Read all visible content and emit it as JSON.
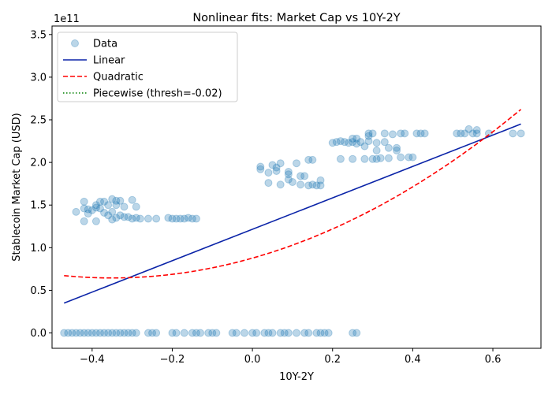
{
  "chart_data": {
    "type": "scatter",
    "title": "Nonlinear fits: Market Cap vs 10Y-2Y",
    "xlabel": "10Y-2Y",
    "ylabel": "Stablecoin Market Cap (USD)",
    "y_multiplier_label": "1e11",
    "xlim": [
      -0.5,
      0.72
    ],
    "ylim": [
      -0.18,
      3.6
    ],
    "x_ticks": [
      -0.4,
      -0.2,
      0.0,
      0.2,
      0.4,
      0.6
    ],
    "x_tick_labels": [
      "−0.4",
      "−0.2",
      "0.0",
      "0.2",
      "0.4",
      "0.6"
    ],
    "y_ticks": [
      0.0,
      0.5,
      1.0,
      1.5,
      2.0,
      2.5,
      3.0,
      3.5
    ],
    "y_tick_labels": [
      "0.0",
      "0.5",
      "1.0",
      "1.5",
      "2.0",
      "2.5",
      "3.0",
      "3.5"
    ],
    "grid": false,
    "legend_position": "top-left",
    "legend": [
      {
        "label": "Data",
        "style": "scatter",
        "color": "#1f77b4"
      },
      {
        "label": "Linear",
        "style": "solid",
        "color": "#0b24a8"
      },
      {
        "label": "Quadratic",
        "style": "dashed",
        "color": "#ff0000"
      },
      {
        "label": "Piecewise (thresh=-0.02)",
        "style": "dotted",
        "color": "#008000"
      }
    ],
    "series": [
      {
        "name": "Data",
        "kind": "scatter",
        "color": "#1f77b4",
        "points": [
          [
            -0.47,
            0.0
          ],
          [
            -0.46,
            0.0
          ],
          [
            -0.45,
            0.0
          ],
          [
            -0.44,
            0.0
          ],
          [
            -0.43,
            0.0
          ],
          [
            -0.42,
            0.0
          ],
          [
            -0.41,
            0.0
          ],
          [
            -0.4,
            0.0
          ],
          [
            -0.39,
            0.0
          ],
          [
            -0.38,
            0.0
          ],
          [
            -0.37,
            0.0
          ],
          [
            -0.36,
            0.0
          ],
          [
            -0.35,
            0.0
          ],
          [
            -0.34,
            0.0
          ],
          [
            -0.33,
            0.0
          ],
          [
            -0.32,
            0.0
          ],
          [
            -0.31,
            0.0
          ],
          [
            -0.3,
            0.0
          ],
          [
            -0.29,
            0.0
          ],
          [
            -0.26,
            0.0
          ],
          [
            -0.25,
            0.0
          ],
          [
            -0.24,
            0.0
          ],
          [
            -0.2,
            0.0
          ],
          [
            -0.19,
            0.0
          ],
          [
            -0.17,
            0.0
          ],
          [
            -0.15,
            0.0
          ],
          [
            -0.14,
            0.0
          ],
          [
            -0.13,
            0.0
          ],
          [
            -0.11,
            0.0
          ],
          [
            -0.1,
            0.0
          ],
          [
            -0.09,
            0.0
          ],
          [
            -0.05,
            0.0
          ],
          [
            -0.04,
            0.0
          ],
          [
            -0.02,
            0.0
          ],
          [
            0.0,
            0.0
          ],
          [
            0.01,
            0.0
          ],
          [
            0.03,
            0.0
          ],
          [
            0.04,
            0.0
          ],
          [
            0.05,
            0.0
          ],
          [
            0.07,
            0.0
          ],
          [
            0.08,
            0.0
          ],
          [
            0.09,
            0.0
          ],
          [
            0.11,
            0.0
          ],
          [
            0.13,
            0.0
          ],
          [
            0.14,
            0.0
          ],
          [
            0.16,
            0.0
          ],
          [
            0.17,
            0.0
          ],
          [
            0.18,
            0.0
          ],
          [
            0.19,
            0.0
          ],
          [
            0.25,
            0.0
          ],
          [
            0.26,
            0.0
          ],
          [
            -0.44,
            1.42
          ],
          [
            -0.42,
            1.46
          ],
          [
            -0.42,
            1.54
          ],
          [
            -0.42,
            1.31
          ],
          [
            -0.41,
            1.4
          ],
          [
            -0.41,
            1.45
          ],
          [
            -0.4,
            1.44
          ],
          [
            -0.39,
            1.47
          ],
          [
            -0.39,
            1.5
          ],
          [
            -0.39,
            1.31
          ],
          [
            -0.38,
            1.54
          ],
          [
            -0.38,
            1.46
          ],
          [
            -0.37,
            1.41
          ],
          [
            -0.37,
            1.54
          ],
          [
            -0.36,
            1.38
          ],
          [
            -0.36,
            1.5
          ],
          [
            -0.35,
            1.57
          ],
          [
            -0.35,
            1.33
          ],
          [
            -0.35,
            1.42
          ],
          [
            -0.34,
            1.55
          ],
          [
            -0.34,
            1.5
          ],
          [
            -0.34,
            1.35
          ],
          [
            -0.33,
            1.38
          ],
          [
            -0.33,
            1.55
          ],
          [
            -0.32,
            1.48
          ],
          [
            -0.32,
            1.36
          ],
          [
            -0.31,
            1.36
          ],
          [
            -0.3,
            1.34
          ],
          [
            -0.3,
            1.56
          ],
          [
            -0.29,
            1.48
          ],
          [
            -0.29,
            1.35
          ],
          [
            -0.28,
            1.34
          ],
          [
            -0.26,
            1.34
          ],
          [
            -0.24,
            1.34
          ],
          [
            -0.21,
            1.35
          ],
          [
            -0.2,
            1.34
          ],
          [
            -0.19,
            1.34
          ],
          [
            -0.18,
            1.34
          ],
          [
            -0.17,
            1.34
          ],
          [
            -0.16,
            1.35
          ],
          [
            -0.15,
            1.34
          ],
          [
            -0.14,
            1.34
          ],
          [
            0.02,
            1.95
          ],
          [
            0.02,
            1.92
          ],
          [
            0.04,
            1.76
          ],
          [
            0.04,
            1.88
          ],
          [
            0.05,
            1.97
          ],
          [
            0.06,
            1.9
          ],
          [
            0.06,
            1.94
          ],
          [
            0.07,
            1.99
          ],
          [
            0.07,
            1.74
          ],
          [
            0.09,
            1.8
          ],
          [
            0.09,
            1.86
          ],
          [
            0.09,
            1.89
          ],
          [
            0.1,
            1.77
          ],
          [
            0.11,
            1.99
          ],
          [
            0.12,
            1.84
          ],
          [
            0.12,
            1.74
          ],
          [
            0.13,
            1.84
          ],
          [
            0.14,
            1.73
          ],
          [
            0.14,
            2.03
          ],
          [
            0.15,
            2.03
          ],
          [
            0.15,
            1.74
          ],
          [
            0.16,
            1.73
          ],
          [
            0.17,
            1.73
          ],
          [
            0.17,
            1.79
          ],
          [
            0.2,
            2.23
          ],
          [
            0.21,
            2.24
          ],
          [
            0.22,
            2.04
          ],
          [
            0.22,
            2.25
          ],
          [
            0.23,
            2.24
          ],
          [
            0.24,
            2.23
          ],
          [
            0.25,
            2.24
          ],
          [
            0.25,
            2.04
          ],
          [
            0.25,
            2.28
          ],
          [
            0.26,
            2.22
          ],
          [
            0.26,
            2.28
          ],
          [
            0.27,
            2.24
          ],
          [
            0.28,
            2.19
          ],
          [
            0.28,
            2.04
          ],
          [
            0.29,
            2.25
          ],
          [
            0.29,
            2.31
          ],
          [
            0.29,
            2.34
          ],
          [
            0.3,
            2.04
          ],
          [
            0.3,
            2.34
          ],
          [
            0.31,
            2.04
          ],
          [
            0.31,
            2.14
          ],
          [
            0.31,
            2.23
          ],
          [
            0.32,
            2.05
          ],
          [
            0.33,
            2.24
          ],
          [
            0.33,
            2.34
          ],
          [
            0.34,
            2.05
          ],
          [
            0.34,
            2.17
          ],
          [
            0.35,
            2.33
          ],
          [
            0.36,
            2.14
          ],
          [
            0.36,
            2.17
          ],
          [
            0.37,
            2.06
          ],
          [
            0.37,
            2.34
          ],
          [
            0.38,
            2.34
          ],
          [
            0.39,
            2.06
          ],
          [
            0.4,
            2.06
          ],
          [
            0.41,
            2.34
          ],
          [
            0.42,
            2.34
          ],
          [
            0.43,
            2.34
          ],
          [
            0.51,
            2.34
          ],
          [
            0.52,
            2.34
          ],
          [
            0.53,
            2.34
          ],
          [
            0.54,
            2.39
          ],
          [
            0.55,
            2.34
          ],
          [
            0.56,
            2.38
          ],
          [
            0.56,
            2.34
          ],
          [
            0.59,
            2.34
          ],
          [
            0.65,
            2.34
          ],
          [
            0.67,
            2.34
          ]
        ]
      },
      {
        "name": "Linear",
        "kind": "line",
        "color": "#0b24a8",
        "x": [
          -0.47,
          0.67
        ],
        "y": [
          0.35,
          2.45
        ]
      },
      {
        "name": "Quadratic",
        "kind": "dashed-line",
        "color": "#ff0000",
        "a": 1.9,
        "b": 1.0,
        "c": 0.97,
        "x_range": [
          -0.47,
          0.67
        ]
      },
      {
        "name": "Piecewise (thresh=-0.02)",
        "kind": "dotted-line",
        "color": "#008000",
        "x": [],
        "y": []
      }
    ]
  }
}
